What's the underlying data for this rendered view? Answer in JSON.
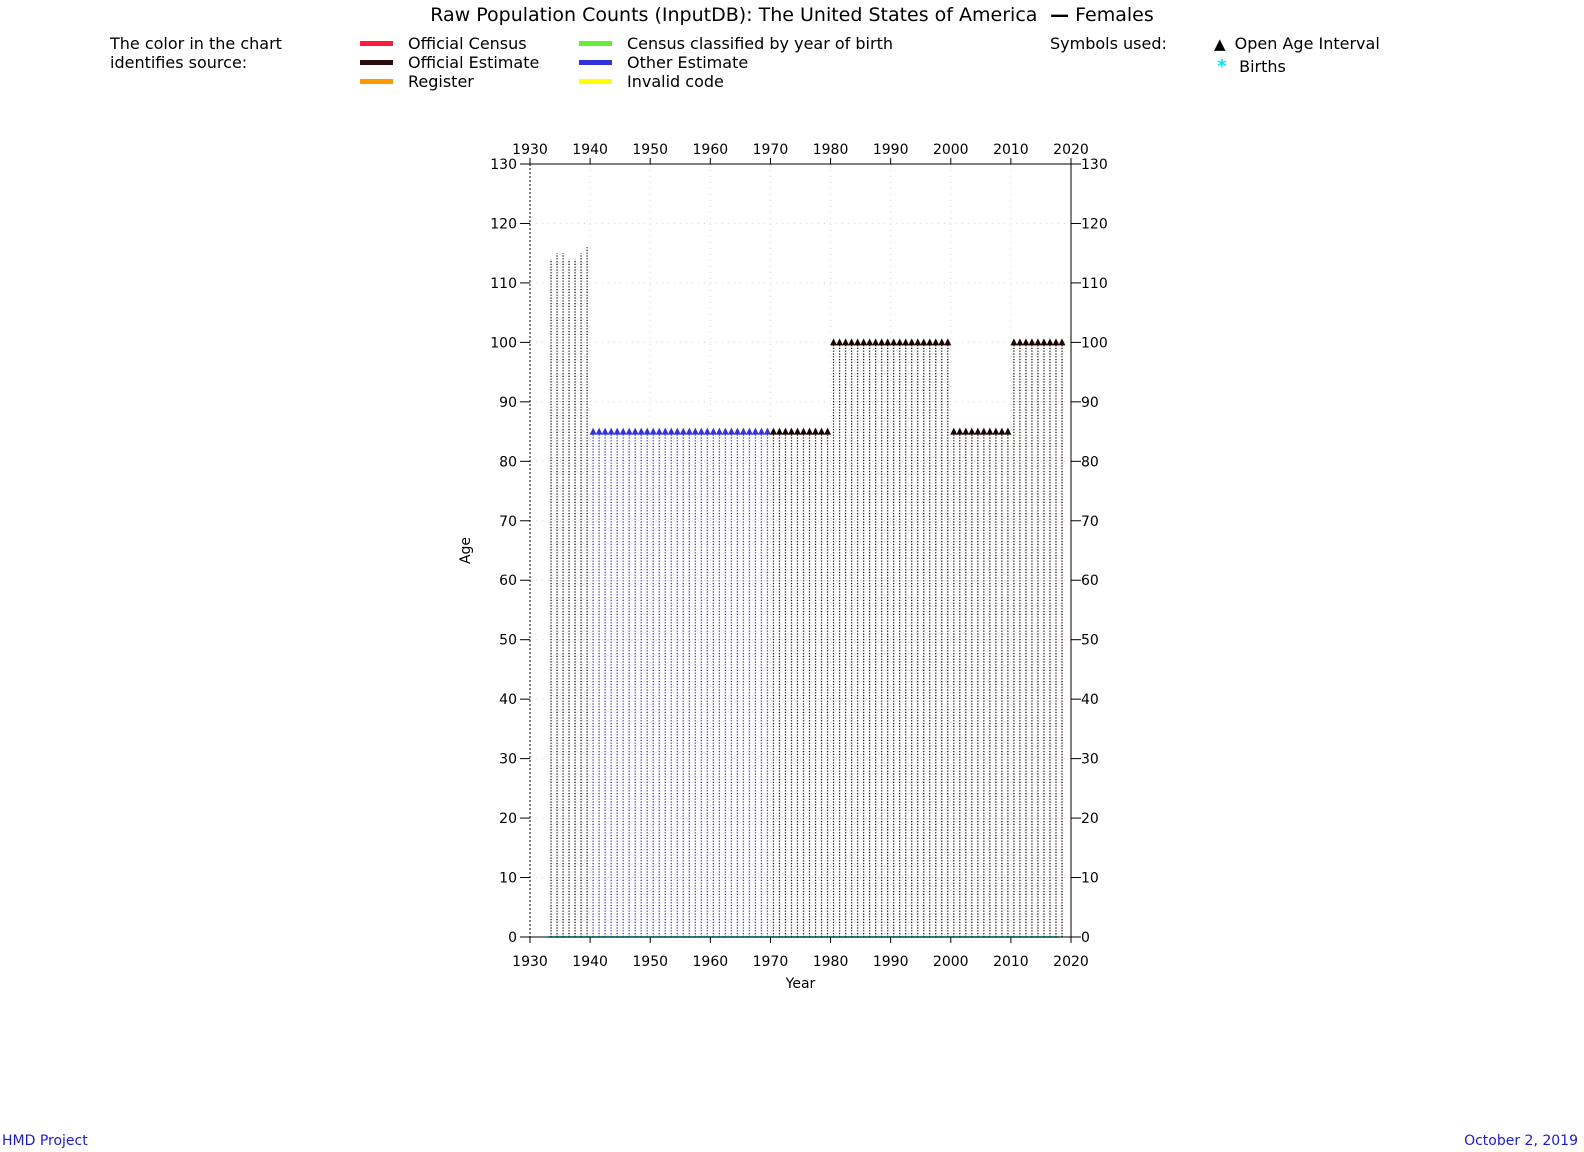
{
  "chart_data": {
    "type": "scatter",
    "title": "Raw Population Counts (InputDB): The United States of America",
    "title_sex_label": "Females",
    "xlabel": "Year",
    "ylabel": "Age",
    "xlim": [
      1930,
      2020
    ],
    "ylim": [
      0,
      130
    ],
    "x_ticks": [
      1930,
      1940,
      1950,
      1960,
      1970,
      1980,
      1990,
      2000,
      2010,
      2020
    ],
    "y_ticks": [
      0,
      10,
      20,
      30,
      40,
      50,
      60,
      70,
      80,
      90,
      100,
      110,
      120,
      130
    ],
    "grid": true,
    "legend": {
      "color_intro": "The color in the chart identifies source:",
      "color_intro_lines": [
        "The color in the chart",
        "identifies source:"
      ],
      "sources": [
        {
          "name": "Official Census",
          "color": "#ff1a3c"
        },
        {
          "name": "Official Estimate",
          "color": "#2a0a0a"
        },
        {
          "name": "Register",
          "color": "#ff9900"
        },
        {
          "name": "Census classified by year of birth",
          "color": "#66ee33"
        },
        {
          "name": "Other Estimate",
          "color": "#3333dd"
        },
        {
          "name": "Invalid code",
          "color": "#ffff00"
        }
      ],
      "symbols_intro": "Symbols used:",
      "symbols": [
        {
          "name": "Open Age Interval",
          "symbol": "triangle",
          "color": "#000000"
        },
        {
          "name": "Births",
          "symbol": "asterisk",
          "color": "#00e5ee"
        }
      ]
    },
    "series": [
      {
        "source": "Official Estimate",
        "color": "#2a0a0a",
        "x": [
          1933,
          1934,
          1935,
          1936,
          1937,
          1938,
          1939
        ],
        "max_age": [
          114,
          115,
          115,
          114,
          114,
          115,
          116
        ],
        "open_age": false
      },
      {
        "source": "Other Estimate",
        "color": "#3333dd",
        "x_range": [
          1940,
          1969
        ],
        "max_age": 85,
        "open_age": true
      },
      {
        "source": "Official Estimate",
        "color": "#2a0a0a",
        "x_range": [
          1970,
          1979
        ],
        "max_age": 85,
        "open_age": true
      },
      {
        "source": "Official Estimate",
        "color": "#2a0a0a",
        "x_range": [
          1980,
          1999
        ],
        "max_age": 100,
        "open_age": true
      },
      {
        "source": "Official Estimate",
        "color": "#2a0a0a",
        "x_range": [
          2000,
          2009
        ],
        "max_age": 85,
        "open_age": true
      },
      {
        "source": "Official Estimate",
        "color": "#2a0a0a",
        "x_range": [
          2010,
          2018
        ],
        "max_age": 100,
        "open_age": true
      }
    ],
    "births": {
      "x_range": [
        1933,
        2017
      ],
      "age": 0,
      "color": "#00e5ee"
    }
  },
  "footer": {
    "left": "HMD Project",
    "right": "October 2, 2019"
  }
}
